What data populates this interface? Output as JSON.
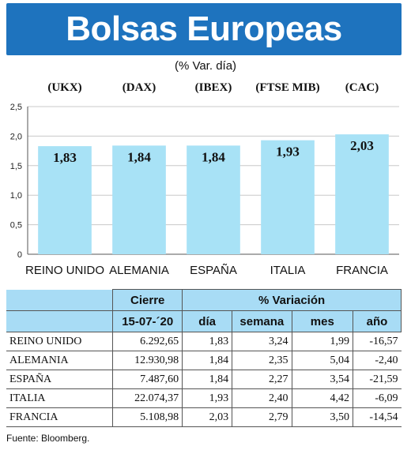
{
  "header": {
    "title": "Bolsas Europeas",
    "subtitle": "(% Var. día)"
  },
  "colors": {
    "title_bg": "#1e73be",
    "bar_fill": "#a8e2f6",
    "table_header_bg": "#a8dcf5"
  },
  "chart_data": {
    "type": "bar",
    "title": "Bolsas Europeas",
    "subtitle": "(% Var. día)",
    "index_codes": [
      "(UKX)",
      "(DAX)",
      "(IBEX)",
      "(FTSE MIB)",
      "(CAC)"
    ],
    "categories": [
      "REINO UNIDO",
      "ALEMANIA",
      "ESPAÑA",
      "ITALIA",
      "FRANCIA"
    ],
    "values": [
      1.83,
      1.84,
      1.84,
      1.93,
      2.03
    ],
    "value_labels": [
      "1,83",
      "1,84",
      "1,84",
      "1,93",
      "2,03"
    ],
    "ylim": [
      0,
      2.5
    ],
    "yticks": [
      0,
      0.5,
      1.0,
      1.5,
      2.0,
      2.5
    ],
    "ytick_labels": [
      "0",
      "0,5",
      "1,0",
      "1,5",
      "2,0",
      "2,5"
    ],
    "grid": true
  },
  "table": {
    "group_headers": [
      "Cierre",
      "% Variación"
    ],
    "sub_headers": [
      "15-07-´20",
      "día",
      "semana",
      "mes",
      "año"
    ],
    "rows": [
      [
        "REINO UNIDO",
        "6.292,65",
        "1,83",
        "3,24",
        "1,99",
        "-16,57"
      ],
      [
        "ALEMANIA",
        "12.930,98",
        "1,84",
        "2,35",
        "5,04",
        "-2,40"
      ],
      [
        "ESPAÑA",
        "7.487,60",
        "1,84",
        "2,27",
        "3,54",
        "-21,59"
      ],
      [
        "ITALIA",
        "22.074,37",
        "1,93",
        "2,40",
        "4,42",
        "-6,09"
      ],
      [
        "FRANCIA",
        "5.108,98",
        "2,03",
        "2,79",
        "3,50",
        "-14,54"
      ]
    ]
  },
  "source": "Fuente: Bloomberg."
}
